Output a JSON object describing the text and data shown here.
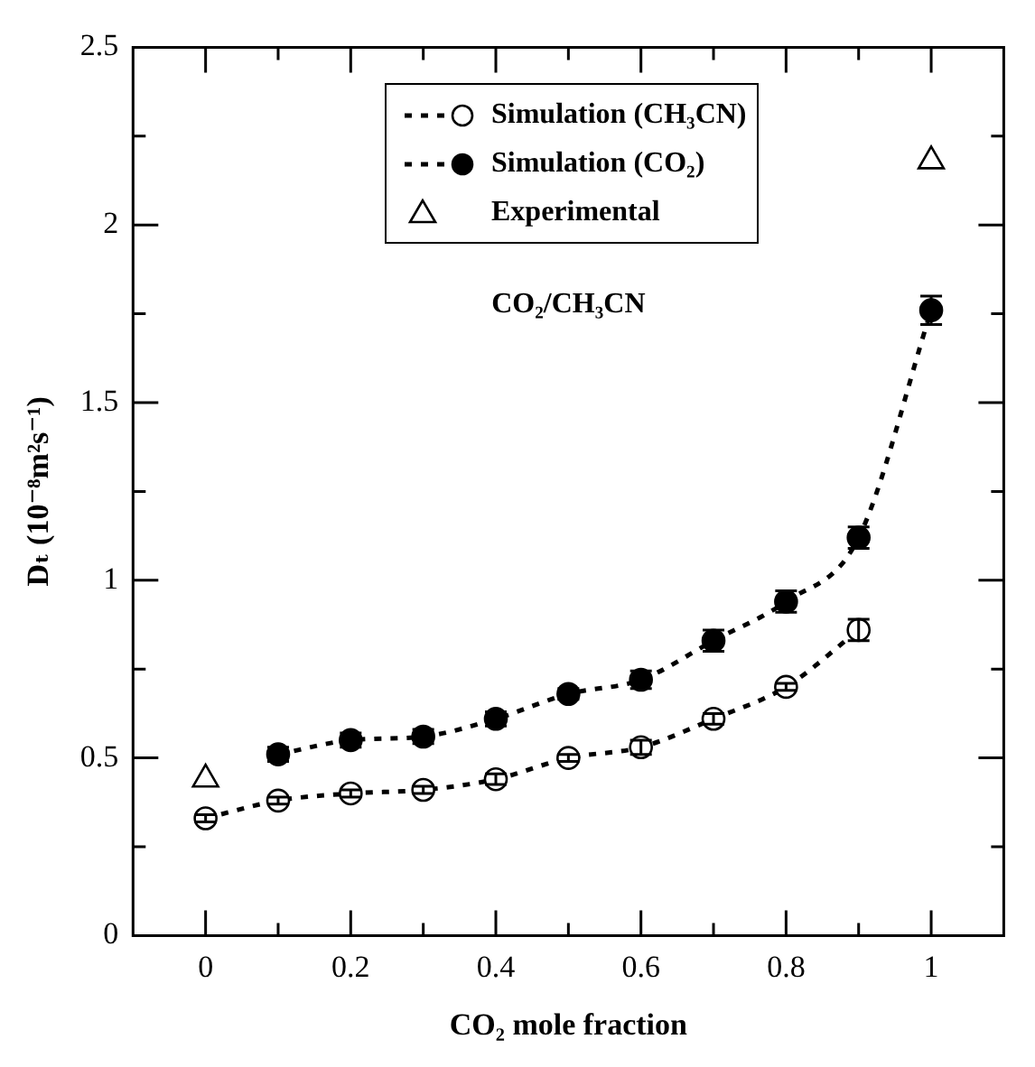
{
  "chart_data": {
    "type": "line",
    "xlabel": "CO₂ mole fraction",
    "ylabel": "Dₜ (10⁻⁸m²s⁻¹)",
    "annotations": [
      "CO₂/CH₃CN"
    ],
    "xlim": [
      -0.1,
      1.1
    ],
    "ylim": [
      0,
      2.5
    ],
    "xticks": [
      0,
      {
        "value": 0.1,
        "label": null
      },
      0.2,
      {
        "value": 0.3,
        "label": null
      },
      0.4,
      {
        "value": 0.5,
        "label": null
      },
      0.6,
      {
        "value": 0.7,
        "label": null
      },
      0.8,
      {
        "value": 0.9,
        "label": null
      },
      1
    ],
    "yticks": [
      0,
      {
        "value": 0.25,
        "label": null
      },
      0.5,
      {
        "value": 0.75,
        "label": null
      },
      1,
      {
        "value": 1.25,
        "label": null
      },
      1.5,
      {
        "value": 1.75,
        "label": null
      },
      2,
      {
        "value": 2.25,
        "label": null
      },
      2.5
    ],
    "grid": false,
    "legend": "top",
    "marker": "circle",
    "line_style": "dashed",
    "series": [
      {
        "name": "Simulation (CH₃CN)",
        "color": "#000000",
        "x": [
          0,
          0.1,
          0.2,
          0.3,
          0.4,
          0.5,
          0.6,
          0.7,
          0.8,
          0.9
        ],
        "values": [
          0.33,
          0.38,
          0.4,
          0.41,
          0.44,
          0.5,
          0.53,
          0.61,
          0.7,
          0.86
        ],
        "errors": [
          0.01,
          0.01,
          0.01,
          0.01,
          0.015,
          0.01,
          0.02,
          0.015,
          0.01,
          0.03
        ]
      },
      {
        "name": "Simulation (CO₂)",
        "color": "#000000",
        "x": [
          0.1,
          0.2,
          0.3,
          0.4,
          0.5,
          0.6,
          0.7,
          0.8,
          0.9,
          1
        ],
        "values": [
          0.51,
          0.55,
          0.56,
          0.61,
          0.68,
          0.72,
          0.83,
          0.94,
          1.12,
          1.76
        ],
        "errors": [
          0.02,
          0.02,
          0.02,
          0.02,
          0.015,
          0.025,
          0.03,
          0.03,
          0.03,
          0.04
        ]
      },
      {
        "name": "Experimental",
        "type": "scatter",
        "marker": "triangle",
        "color": "#000000",
        "x": [
          0,
          1
        ],
        "values": [
          0.44,
          2.18
        ]
      }
    ]
  }
}
